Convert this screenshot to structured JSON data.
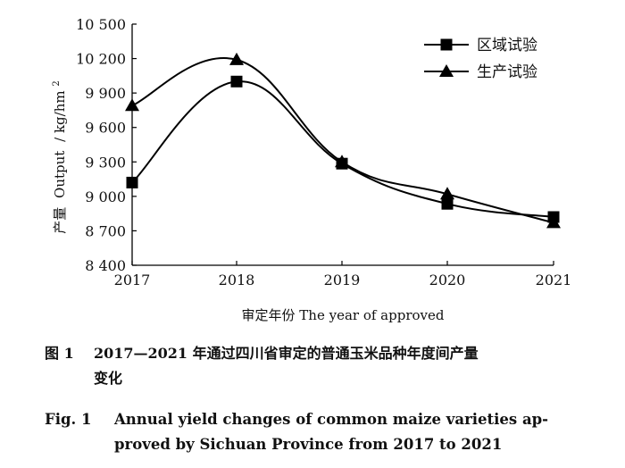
{
  "chart_data": {
    "type": "line",
    "categories": [
      "2017",
      "2018",
      "2019",
      "2020",
      "2021"
    ],
    "series": [
      {
        "name": "区域试验",
        "marker": "square",
        "values": [
          9120,
          10000,
          9285,
          8935,
          8820
        ]
      },
      {
        "name": "生产试验",
        "marker": "triangle",
        "values": [
          9790,
          10190,
          9300,
          9020,
          8770
        ]
      }
    ],
    "ylim": [
      8400,
      10500
    ],
    "yticks": [
      10500,
      10200,
      9900,
      9600,
      9300,
      9000,
      8700,
      8400
    ],
    "ytick_labels": [
      "10 500",
      "10 200",
      "9 900",
      "9 600",
      "9 300",
      "9 000",
      "8 700",
      "8 400"
    ],
    "ylabel_cn": "产量",
    "ylabel_en": "Output",
    "ylabel_unit": "/ kg/hm",
    "ylabel_unit_sup": "2",
    "xlabel": "审定年份 The year of approved",
    "legend_position": "top-right",
    "grid": false,
    "line_color": "#000000"
  },
  "caption": {
    "cn_label": "图 1",
    "cn_line1": "2017—2021 年通过四川省审定的普通玉米品种年度间产量",
    "cn_line2": "变化",
    "en_label": "Fig. 1",
    "en_line1": "Annual yield changes of common maize varieties ap-",
    "en_line2": "proved by Sichuan Province from 2017 to 2021"
  }
}
